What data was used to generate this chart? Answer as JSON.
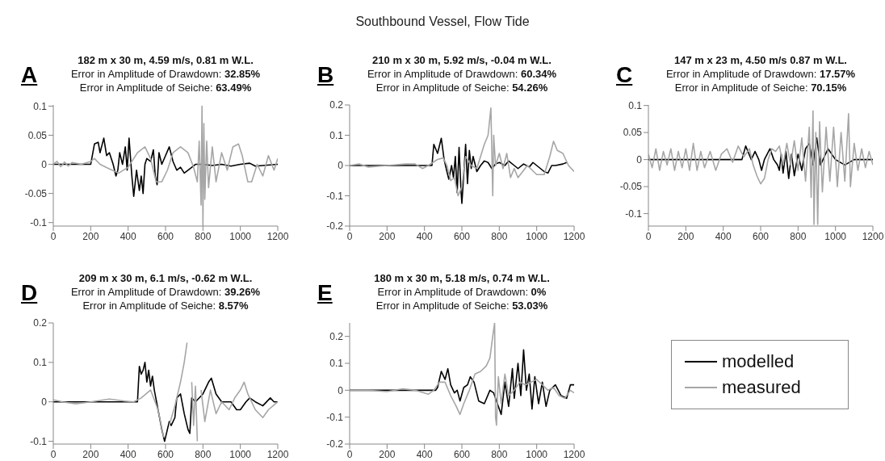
{
  "chart_data": [
    {
      "type": "line",
      "title": "182 m x 30 m, 4.59 m/s, 0.81 m W.L.",
      "subtitle": "Error in Amplitude of Drawdown: 32.85%\nError in Amplitude of Seiche: 63.49%",
      "annotations": [
        "A",
        "Southbound Vessel, Flow Tide"
      ],
      "xlim": [
        0,
        1200
      ],
      "xticks": [
        0,
        200,
        400,
        600,
        800,
        1000,
        1200
      ],
      "ylim": [
        -0.106,
        0.102
      ],
      "yticks": [
        -0.1,
        -0.05,
        0,
        0.05,
        0.1
      ],
      "series": [
        {
          "color": "#000000",
          "x": [
            0,
            100,
            200,
            220,
            240,
            250,
            270,
            285,
            300,
            320,
            335,
            345,
            355,
            370,
            385,
            395,
            405,
            420,
            430,
            445,
            460,
            470,
            480,
            490,
            500,
            520,
            535,
            545,
            555,
            565,
            580,
            600,
            620,
            640,
            660,
            680,
            700,
            720,
            760,
            800,
            850,
            900,
            950,
            1000,
            1050,
            1080,
            1200
          ],
          "values": [
            0,
            0,
            0,
            0.035,
            0.038,
            0.02,
            0.045,
            0.015,
            0.02,
            0,
            -0.02,
            -0.01,
            0.02,
            0,
            0.03,
            -0.01,
            0.045,
            -0.02,
            -0.055,
            -0.01,
            -0.045,
            -0.02,
            -0.05,
            0,
            0.01,
            0.005,
            0.025,
            -0.02,
            -0.035,
            0.02,
            0,
            0.015,
            0.03,
            0.005,
            -0.01,
            -0.005,
            -0.015,
            -0.01,
            0,
            0,
            -0.002,
            0,
            -0.003,
            0,
            0.002,
            -0.003,
            0
          ]
        },
        {
          "color": "#a6a6a6",
          "x": [
            0,
            20,
            40,
            60,
            80,
            100,
            150,
            200,
            220,
            250,
            300,
            350,
            400,
            450,
            490,
            520,
            550,
            580,
            610,
            640,
            680,
            720,
            750,
            770,
            780,
            790,
            795,
            800,
            805,
            810,
            820,
            830,
            850,
            870,
            900,
            930,
            960,
            990,
            1010,
            1040,
            1060,
            1090,
            1120,
            1150,
            1180,
            1200
          ],
          "values": [
            0,
            0.005,
            -0.004,
            0.004,
            -0.003,
            0.003,
            0,
            0.005,
            0.01,
            0,
            -0.008,
            -0.015,
            -0.005,
            0.02,
            0.03,
            0.01,
            -0.03,
            -0.03,
            -0.01,
            0.02,
            0.03,
            0.02,
            -0.005,
            -0.03,
            0.04,
            -0.07,
            0.1,
            -0.105,
            0.07,
            -0.06,
            0.04,
            -0.04,
            0.03,
            -0.03,
            0.02,
            -0.01,
            0.03,
            0.035,
            0.015,
            -0.03,
            -0.03,
            0,
            -0.02,
            0.015,
            -0.01,
            0.01
          ]
        }
      ]
    },
    {
      "type": "line",
      "title": "210 m x 30 m, 5.92 m/s, -0.04 m W.L.",
      "subtitle": "Error in Amplitude of Drawdown: 60.34%\nError in Amplitude of Seiche: 54.26%",
      "annotations": [
        "B"
      ],
      "xlim": [
        0,
        1200
      ],
      "xticks": [
        0,
        200,
        400,
        600,
        800,
        1000,
        1200
      ],
      "ylim": [
        -0.2,
        0.2
      ],
      "yticks": [
        -0.2,
        -0.1,
        0,
        0.1,
        0.2
      ],
      "series": [
        {
          "color": "#000000",
          "x": [
            0,
            200,
            430,
            440,
            450,
            470,
            490,
            505,
            520,
            530,
            545,
            555,
            565,
            575,
            585,
            595,
            600,
            610,
            620,
            630,
            640,
            650,
            660,
            680,
            700,
            720,
            740,
            760,
            780,
            800,
            830,
            850,
            880,
            900,
            930,
            960,
            980,
            1000,
            1040,
            1060,
            1080,
            1100,
            1140,
            1160
          ],
          "values": [
            0,
            0,
            0,
            0,
            0.07,
            0.04,
            0.09,
            0.02,
            -0.02,
            -0.045,
            0,
            -0.04,
            0.03,
            -0.09,
            0.06,
            -0.08,
            -0.125,
            -0.03,
            0.07,
            -0.06,
            0.05,
            -0.01,
            0.03,
            -0.02,
            0,
            0.015,
            0.01,
            -0.01,
            0.005,
            0.01,
            0,
            0.015,
            0,
            -0.01,
            0.005,
            -0.005,
            0.01,
            0,
            -0.02,
            -0.025,
            0,
            0,
            0.005,
            0.01
          ]
        },
        {
          "color": "#a6a6a6",
          "x": [
            0,
            50,
            100,
            200,
            300,
            350,
            390,
            420,
            470,
            500,
            520,
            540,
            560,
            580,
            600,
            620,
            650,
            680,
            700,
            720,
            740,
            755,
            760,
            765,
            770,
            780,
            800,
            820,
            840,
            860,
            880,
            900,
            950,
            1000,
            1040,
            1070,
            1090,
            1110,
            1140,
            1170,
            1200
          ],
          "values": [
            0,
            0.005,
            -0.005,
            0,
            0.005,
            0.005,
            -0.01,
            0,
            0.02,
            0.025,
            0,
            -0.05,
            -0.04,
            -0.1,
            -0.07,
            0.03,
            0,
            -0.01,
            0.03,
            0.07,
            0.1,
            0.19,
            0.05,
            -0.1,
            0.1,
            0,
            0.04,
            -0.01,
            0.04,
            -0.04,
            -0.01,
            -0.04,
            0,
            -0.03,
            -0.03,
            0.03,
            0.08,
            0.05,
            0.04,
            0,
            -0.02
          ]
        }
      ]
    },
    {
      "type": "line",
      "title": "147 m x 23 m, 4.50 m/s 0.87 m W.L.",
      "subtitle": "Error in Amplitude of Drawdown: 17.57%\nError in Amplitude of Seiche: 70.15%",
      "annotations": [
        "C"
      ],
      "xlim": [
        0,
        1200
      ],
      "xticks": [
        0,
        200,
        400,
        600,
        800,
        1000,
        1200
      ],
      "ylim": [
        -0.123,
        0.101
      ],
      "yticks": [
        -0.1,
        -0.05,
        0,
        0.05,
        0.1
      ],
      "series": [
        {
          "color": "#000000",
          "x": [
            0,
            250,
            500,
            520,
            550,
            570,
            590,
            605,
            620,
            650,
            670,
            690,
            700,
            710,
            720,
            735,
            750,
            765,
            780,
            800,
            820,
            840,
            860,
            880,
            900,
            920,
            960,
            1000,
            1050,
            1100,
            1200
          ],
          "values": [
            0,
            0,
            0,
            0.025,
            0,
            0.015,
            0,
            -0.02,
            0,
            0.02,
            0,
            -0.01,
            -0.02,
            0.01,
            -0.025,
            0.015,
            -0.035,
            0.01,
            -0.03,
            0.01,
            -0.02,
            0.02,
            0.03,
            -0.01,
            0.04,
            -0.01,
            0.02,
            0,
            -0.01,
            0,
            0
          ]
        },
        {
          "color": "#a6a6a6",
          "x": [
            0,
            20,
            40,
            60,
            80,
            100,
            120,
            140,
            160,
            180,
            200,
            220,
            240,
            260,
            280,
            300,
            330,
            360,
            390,
            420,
            450,
            480,
            510,
            540,
            560,
            580,
            600,
            620,
            640,
            660,
            680,
            700,
            720,
            740,
            760,
            780,
            800,
            820,
            840,
            860,
            870,
            880,
            885,
            895,
            905,
            915,
            930,
            950,
            970,
            990,
            1010,
            1030,
            1050,
            1070,
            1080,
            1100,
            1120,
            1140,
            1160,
            1180,
            1200
          ],
          "values": [
            0.01,
            -0.015,
            0.02,
            -0.02,
            0.015,
            -0.01,
            0.02,
            -0.02,
            0.015,
            -0.015,
            0.02,
            -0.02,
            0.03,
            -0.02,
            0.015,
            -0.015,
            0.015,
            -0.02,
            0.01,
            0.02,
            -0.005,
            0.025,
            0.005,
            0.02,
            -0.01,
            -0.03,
            -0.045,
            -0.035,
            0,
            0.02,
            0.015,
            0.025,
            -0.01,
            0.03,
            -0.01,
            0.035,
            -0.02,
            0.04,
            -0.04,
            0.06,
            -0.07,
            0.09,
            -0.12,
            0.05,
            -0.12,
            0.07,
            -0.06,
            0.06,
            -0.04,
            0.06,
            -0.05,
            0.05,
            -0.04,
            0.085,
            -0.05,
            0.03,
            -0.02,
            0.02,
            -0.015,
            0.015,
            -0.01
          ]
        }
      ]
    },
    {
      "type": "line",
      "title": "209 m x 30 m, 6.1 m/s, -0.62 m W.L.",
      "subtitle": "Error in Amplitude of Drawdown: 39.26%\nError in Amplitude of Seiche: 8.57%",
      "annotations": [
        "D"
      ],
      "xlim": [
        0,
        1200
      ],
      "xticks": [
        0,
        200,
        400,
        600,
        800,
        1000,
        1200
      ],
      "ylim": [
        -0.107,
        0.2
      ],
      "yticks": [
        -0.1,
        0,
        0.1,
        0.2
      ],
      "series": [
        {
          "color": "#000000",
          "x": [
            0,
            250,
            450,
            460,
            470,
            480,
            490,
            500,
            510,
            520,
            530,
            540,
            560,
            580,
            595,
            610,
            620,
            630,
            650,
            660,
            680,
            700,
            720,
            730,
            740,
            760,
            800,
            830,
            845,
            870,
            900,
            950,
            980,
            1000,
            1030,
            1050,
            1080,
            1120,
            1160,
            1180,
            1200
          ],
          "values": [
            0,
            0,
            0,
            0.09,
            0.07,
            0.08,
            0.1,
            0.05,
            0.08,
            0.04,
            0.065,
            0.03,
            -0.02,
            -0.07,
            -0.1,
            -0.07,
            -0.05,
            -0.06,
            -0.04,
            0.01,
            0.02,
            -0.03,
            -0.07,
            -0.08,
            0.01,
            0,
            0.02,
            0.05,
            0.06,
            0.02,
            0,
            0,
            -0.02,
            -0.02,
            0,
            0.01,
            0,
            -0.01,
            0.01,
            0,
            0
          ]
        },
        {
          "color": "#a6a6a6",
          "x": [
            0,
            50,
            120,
            200,
            300,
            380,
            430,
            470,
            520,
            560,
            590,
            600,
            620,
            650,
            680,
            700,
            715,
            730,
            740,
            750,
            760,
            770,
            780,
            790,
            810,
            840,
            870,
            900,
            940,
            970,
            1000,
            1020,
            1040,
            1080,
            1120,
            1150,
            1200
          ],
          "values": [
            0.005,
            0,
            -0.005,
            0,
            0.007,
            0.002,
            0,
            0.01,
            0.03,
            -0.02,
            -0.09,
            null,
            -0.06,
            -0.01,
            0.05,
            0.1,
            0.15,
            null,
            0.05,
            -0.06,
            0.04,
            -0.1,
            null,
            0.03,
            -0.05,
            0.03,
            -0.03,
            0,
            -0.02,
            0.01,
            0.03,
            0.05,
            0.02,
            -0.02,
            -0.04,
            -0.02,
            0
          ]
        }
      ]
    },
    {
      "type": "line",
      "title": "180 m x 30 m, 5.18 m/s, 0.74 m W.L.",
      "subtitle": "Error in Amplitude of Drawdown: 0%\nError in Amplitude of Seiche: 53.03%",
      "annotations": [
        "E"
      ],
      "xlim": [
        0,
        1200
      ],
      "xticks": [
        0,
        200,
        400,
        600,
        800,
        1000,
        1200
      ],
      "ylim": [
        -0.2,
        0.25
      ],
      "yticks": [
        -0.2,
        -0.1,
        0,
        0.1,
        0.2
      ],
      "legend": "right",
      "series": [
        {
          "name": "modelled",
          "color": "#000000",
          "x": [
            0,
            240,
            420,
            460,
            470,
            490,
            510,
            525,
            540,
            560,
            575,
            590,
            610,
            630,
            645,
            665,
            690,
            720,
            750,
            770,
            790,
            810,
            830,
            850,
            870,
            880,
            900,
            915,
            930,
            945,
            960,
            975,
            990,
            1010,
            1030,
            1050,
            1070,
            1100,
            1130,
            1160,
            1180,
            1200
          ],
          "values": [
            0,
            0,
            0,
            0,
            0.01,
            0.07,
            0.04,
            0.08,
            0.02,
            -0.01,
            0,
            -0.04,
            0.01,
            0.02,
            0.05,
            0.03,
            -0.04,
            -0.05,
            0,
            -0.01,
            -0.05,
            -0.09,
            0.03,
            -0.06,
            0.08,
            -0.03,
            0.1,
            -0.02,
            0.15,
            0,
            0.06,
            -0.07,
            0.05,
            -0.05,
            0.03,
            -0.06,
            0,
            0.02,
            -0.02,
            -0.03,
            0.02,
            0.02
          ]
        },
        {
          "name": "measured",
          "color": "#a6a6a6",
          "x": [
            0,
            100,
            200,
            280,
            350,
            420,
            450,
            480,
            510,
            540,
            570,
            590,
            610,
            640,
            670,
            700,
            730,
            750,
            765,
            775,
            780,
            785,
            795,
            810,
            830,
            850,
            880,
            910,
            940,
            970,
            1000,
            1030,
            1060,
            1090,
            1120,
            1150,
            1180,
            1200
          ],
          "values": [
            0,
            0,
            -0.005,
            0.005,
            0,
            -0.015,
            0,
            0.03,
            0.03,
            -0.02,
            -0.06,
            -0.09,
            -0.05,
            0,
            0.06,
            0.07,
            0.09,
            0.12,
            0.2,
            0.25,
            -0.1,
            -0.13,
            0.05,
            -0.05,
            0.06,
            -0.02,
            0,
            0.03,
            0.02,
            0.03,
            0.04,
            0.02,
            0,
            0.01,
            -0.02,
            -0.03,
            0,
            -0.01
          ]
        }
      ]
    }
  ]
}
